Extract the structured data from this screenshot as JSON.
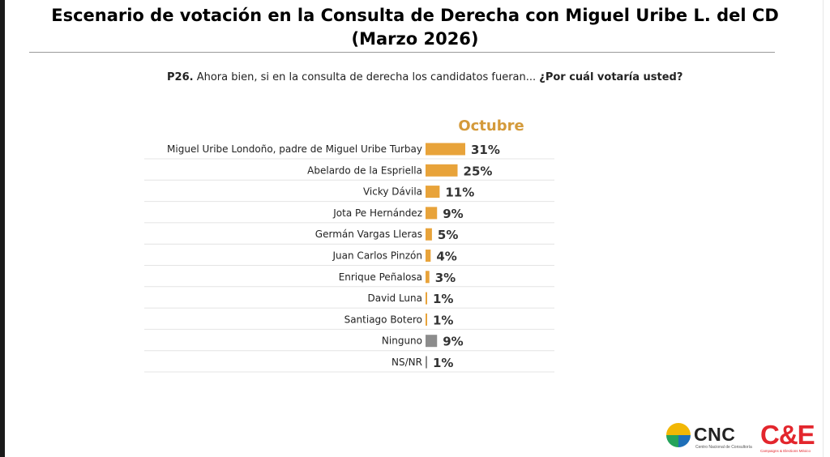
{
  "slide": {
    "title_line1": "Escenario de votación en la Consulta de Derecha con Miguel Uribe L. del CD",
    "title_line2": "(Marzo 2026)",
    "question_code": "P26.",
    "question_text": " Ahora bien, si en la consulta de derecha los candidatos fueran... ",
    "question_emphasis": "¿Por cuál votaría usted?"
  },
  "logos": {
    "cnc": {
      "text": "CNC",
      "subtext": "Centro Nacional de Consultoría"
    },
    "ce": {
      "text": "C&E",
      "subtext": "Campaigns & Elections México"
    }
  },
  "colors": {
    "bar_candidate": "#e8a33a",
    "bar_other": "#8c8c8c",
    "series_label": "#d49a3a",
    "row_line": "#e4e4e4"
  },
  "chart_data": {
    "type": "bar",
    "orientation": "horizontal",
    "title": "",
    "series_label": "Octubre",
    "categories": [
      "Miguel Uribe Londoño, padre de Miguel Uribe Turbay",
      "Abelardo de la Espriella",
      "Vicky Dávila",
      "Jota Pe Hernández",
      "Germán Vargas Lleras",
      "Juan Carlos Pinzón",
      "Enrique Peñalosa",
      "David Luna",
      "Santiago Botero",
      "Ninguno",
      "NS/NR"
    ],
    "series": [
      {
        "name": "Octubre",
        "values": [
          31,
          25,
          11,
          9,
          5,
          4,
          3,
          1,
          1,
          9,
          1
        ]
      }
    ],
    "value_labels": [
      "31%",
      "25%",
      "11%",
      "9%",
      "5%",
      "4%",
      "3%",
      "1%",
      "1%",
      "9%",
      "1%"
    ],
    "bar_colors": [
      "candidate",
      "candidate",
      "candidate",
      "candidate",
      "candidate",
      "candidate",
      "candidate",
      "candidate",
      "candidate",
      "other",
      "other"
    ],
    "unit": "%",
    "xlim": [
      0,
      31
    ],
    "grid": false,
    "legend": "none"
  }
}
